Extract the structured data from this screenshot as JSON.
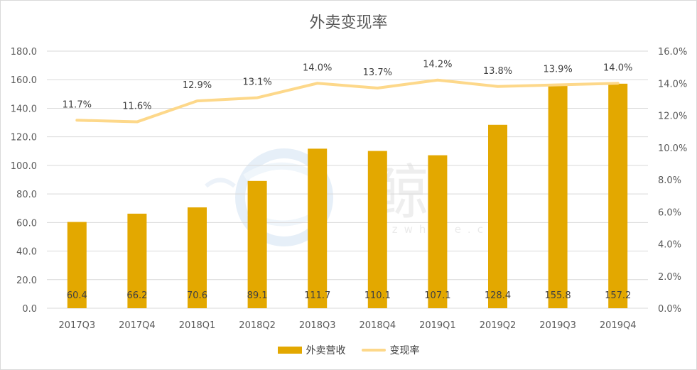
{
  "chart_data": {
    "type": "bar",
    "title": "外卖变现率",
    "categories": [
      "2017Q3",
      "2017Q4",
      "2018Q1",
      "2018Q2",
      "2018Q3",
      "2018Q4",
      "2019Q1",
      "2019Q2",
      "2019Q3",
      "2019Q4"
    ],
    "series": [
      {
        "name": "外卖营收",
        "type": "bar",
        "axis": "left",
        "values": [
          60.4,
          66.2,
          70.6,
          89.1,
          111.7,
          110.1,
          107.1,
          128.4,
          155.8,
          157.2
        ],
        "labels": [
          "60.4",
          "66.2",
          "70.6",
          "89.1",
          "111.7",
          "110.1",
          "107.1",
          "128.4",
          "155.8",
          "157.2"
        ],
        "color": "#e3a800"
      },
      {
        "name": "变现率",
        "type": "line",
        "axis": "right",
        "values": [
          11.7,
          11.6,
          12.9,
          13.1,
          14.0,
          13.7,
          14.2,
          13.8,
          13.9,
          14.0
        ],
        "labels": [
          "11.7%",
          "11.6%",
          "12.9%",
          "13.1%",
          "14.0%",
          "13.7%",
          "14.2%",
          "13.8%",
          "13.9%",
          "14.0%"
        ],
        "color": "#fdd88a"
      }
    ],
    "left_axis": {
      "ylim": [
        0,
        180
      ],
      "ticks": [
        "0.0",
        "20.0",
        "40.0",
        "60.0",
        "80.0",
        "100.0",
        "120.0",
        "140.0",
        "160.0",
        "180.0"
      ]
    },
    "right_axis": {
      "ylim": [
        0,
        16
      ],
      "ticks": [
        "0.0%",
        "2.0%",
        "4.0%",
        "6.0%",
        "8.0%",
        "10.0%",
        "12.0%",
        "14.0%",
        "16.0%"
      ]
    },
    "grid": true,
    "legend": "bottom"
  },
  "watermark": {
    "text_cn": "鲸",
    "text_en": "bizwhale.cn"
  }
}
